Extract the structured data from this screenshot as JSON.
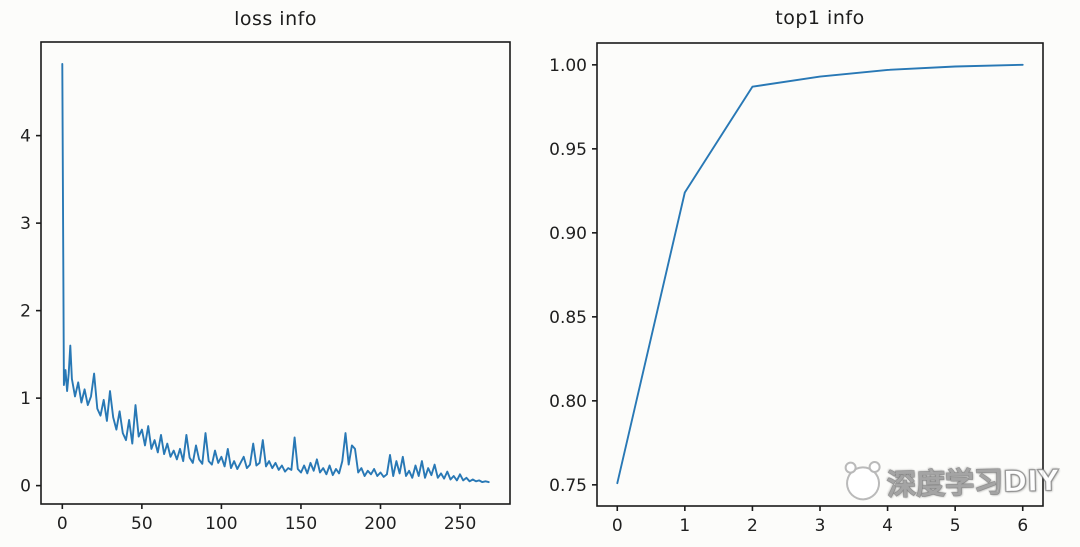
{
  "figure": {
    "background": "#fcfcfa",
    "frame_color": "#1a1a1a",
    "accent_line_color": "#2878b5"
  },
  "watermark": {
    "text": "深度学习DIY",
    "logo": "panda-head-logo-icon"
  },
  "chart_data": [
    {
      "id": "loss",
      "type": "line",
      "title": "loss info",
      "xlabel": "",
      "ylabel": "",
      "legend": null,
      "grid": false,
      "line_color": "#2878b5",
      "frame_color": "#1a1a1a",
      "xlim": [
        -13.4,
        281.4
      ],
      "ylim": [
        -0.21,
        5.07
      ],
      "xticks": [
        0,
        50,
        100,
        150,
        200,
        250
      ],
      "xtick_labels": [
        "0",
        "50",
        "100",
        "150",
        "200",
        "250"
      ],
      "yticks": [
        0,
        1,
        2,
        3,
        4
      ],
      "ytick_labels": [
        "0",
        "1",
        "2",
        "3",
        "4"
      ],
      "x": [
        0,
        1,
        2,
        3,
        4,
        5,
        6,
        8,
        10,
        12,
        14,
        16,
        18,
        20,
        22,
        24,
        26,
        28,
        30,
        32,
        34,
        36,
        38,
        40,
        42,
        44,
        46,
        48,
        50,
        52,
        54,
        56,
        58,
        60,
        62,
        64,
        66,
        68,
        70,
        72,
        74,
        76,
        78,
        80,
        82,
        84,
        86,
        88,
        90,
        92,
        94,
        96,
        98,
        100,
        102,
        104,
        106,
        108,
        110,
        112,
        114,
        116,
        118,
        120,
        122,
        124,
        126,
        128,
        130,
        132,
        134,
        136,
        138,
        140,
        142,
        144,
        146,
        148,
        150,
        152,
        154,
        156,
        158,
        160,
        162,
        164,
        166,
        168,
        170,
        172,
        174,
        176,
        178,
        180,
        182,
        184,
        186,
        188,
        190,
        192,
        194,
        196,
        198,
        200,
        202,
        204,
        206,
        208,
        210,
        212,
        214,
        216,
        218,
        220,
        222,
        224,
        226,
        228,
        230,
        232,
        234,
        236,
        238,
        240,
        242,
        244,
        246,
        248,
        250,
        252,
        254,
        256,
        258,
        260,
        262,
        264,
        266,
        268
      ],
      "y": [
        4.82,
        1.15,
        1.32,
        1.08,
        1.28,
        1.6,
        1.22,
        1.02,
        1.18,
        0.95,
        1.1,
        0.92,
        1.02,
        1.28,
        0.88,
        0.8,
        0.98,
        0.74,
        1.08,
        0.78,
        0.64,
        0.85,
        0.6,
        0.52,
        0.75,
        0.48,
        0.92,
        0.56,
        0.64,
        0.46,
        0.68,
        0.42,
        0.52,
        0.38,
        0.58,
        0.36,
        0.48,
        0.33,
        0.4,
        0.3,
        0.42,
        0.28,
        0.58,
        0.32,
        0.26,
        0.46,
        0.3,
        0.25,
        0.6,
        0.28,
        0.24,
        0.4,
        0.26,
        0.33,
        0.22,
        0.42,
        0.2,
        0.28,
        0.19,
        0.26,
        0.33,
        0.2,
        0.24,
        0.48,
        0.23,
        0.26,
        0.52,
        0.22,
        0.28,
        0.2,
        0.26,
        0.18,
        0.23,
        0.16,
        0.2,
        0.18,
        0.55,
        0.19,
        0.15,
        0.23,
        0.14,
        0.26,
        0.17,
        0.3,
        0.15,
        0.2,
        0.13,
        0.23,
        0.12,
        0.19,
        0.14,
        0.28,
        0.6,
        0.24,
        0.46,
        0.42,
        0.15,
        0.2,
        0.11,
        0.17,
        0.13,
        0.19,
        0.11,
        0.15,
        0.1,
        0.13,
        0.35,
        0.11,
        0.28,
        0.14,
        0.33,
        0.11,
        0.17,
        0.09,
        0.23,
        0.11,
        0.28,
        0.09,
        0.2,
        0.12,
        0.24,
        0.09,
        0.14,
        0.08,
        0.16,
        0.07,
        0.11,
        0.06,
        0.13,
        0.06,
        0.09,
        0.05,
        0.07,
        0.05,
        0.06,
        0.04,
        0.05,
        0.04
      ]
    },
    {
      "id": "top1",
      "type": "line",
      "title": "top1 info",
      "xlabel": "",
      "ylabel": "",
      "legend": null,
      "grid": false,
      "line_color": "#2878b5",
      "frame_color": "#1a1a1a",
      "xlim": [
        -0.3,
        6.3
      ],
      "ylim": [
        0.7374,
        1.013
      ],
      "xticks": [
        0,
        1,
        2,
        3,
        4,
        5,
        6
      ],
      "xtick_labels": [
        "0",
        "1",
        "2",
        "3",
        "4",
        "5",
        "6"
      ],
      "yticks": [
        0.75,
        0.8,
        0.85,
        0.9,
        0.95,
        1.0
      ],
      "ytick_labels": [
        "0.75",
        "0.80",
        "0.85",
        "0.90",
        "0.95",
        "1.00"
      ],
      "x": [
        0,
        1,
        2,
        3,
        4,
        5,
        6
      ],
      "y": [
        0.751,
        0.924,
        0.987,
        0.993,
        0.997,
        0.999,
        1.0
      ]
    }
  ]
}
